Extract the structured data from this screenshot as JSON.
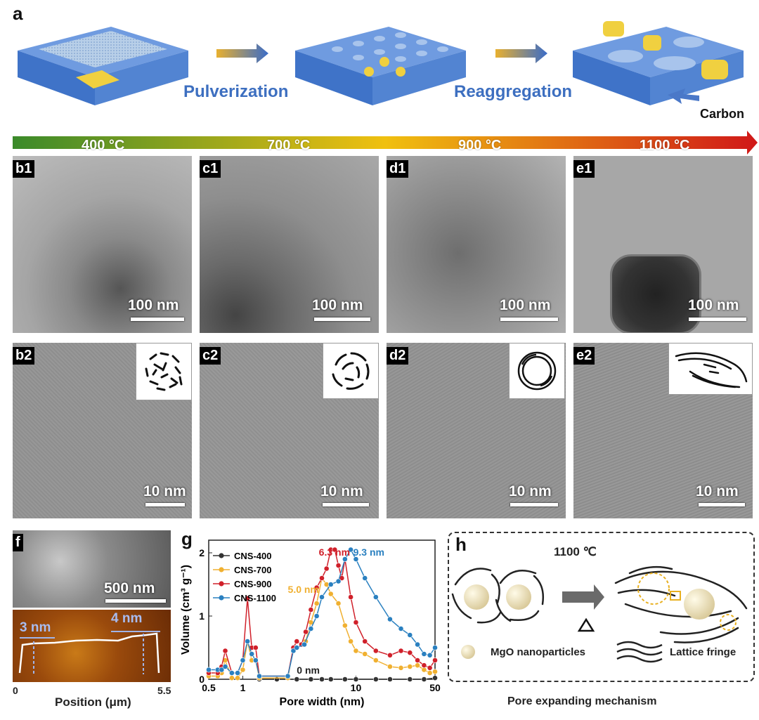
{
  "panels": {
    "a": "a",
    "b1": "b1",
    "c1": "c1",
    "d1": "d1",
    "e1": "e1",
    "b2": "b2",
    "c2": "c2",
    "d2": "d2",
    "e2": "e2",
    "f": "f",
    "g": "g",
    "h": "h"
  },
  "schematic": {
    "step1": "Pulverization",
    "step2": "Reaggregation",
    "carbon_label": "Carbon"
  },
  "temperatures": [
    "400 °C",
    "700 °C",
    "900 °C",
    "1100 °C"
  ],
  "scalebars": {
    "row1": "100 nm",
    "row2": "10 nm",
    "sem": "500 nm"
  },
  "afm": {
    "height1": "3 nm",
    "height2": "4 nm",
    "x_start": "0",
    "x_end": "5.5",
    "xlabel": "Position (μm)"
  },
  "mechanism": {
    "temp": "1100 ℃",
    "legend1": "MgO nanoparticles",
    "legend2": "Lattice fringe",
    "caption": "Pore expanding  mechanism"
  },
  "colors": {
    "cns400": "#333333",
    "cns700": "#f0b030",
    "cns900": "#d0202a",
    "cns1100": "#2a80c0"
  },
  "chart_data": {
    "type": "line",
    "xlabel": "Pore width (nm)",
    "ylabel": "Volume (cm³ g⁻¹)",
    "xscale": "log",
    "xlim": [
      0.5,
      50
    ],
    "ylim": [
      0,
      2.2
    ],
    "xticks": [
      "0.5",
      "1",
      "10",
      "50"
    ],
    "yticks": [
      "0",
      "1",
      "2"
    ],
    "legend_position": "top-left",
    "annotations": [
      "6.3 nm",
      "9.3 nm",
      "5.0 nm",
      "0 nm"
    ],
    "series": [
      {
        "name": "CNS-400",
        "x": [
          1.4,
          2,
          3,
          4,
          5,
          6,
          8,
          10,
          15,
          20,
          30,
          40,
          50
        ],
        "y": [
          0,
          0,
          0,
          0,
          0,
          0,
          0,
          0,
          0,
          0,
          0,
          0,
          0.02
        ]
      },
      {
        "name": "CNS-700",
        "x": [
          0.5,
          0.6,
          0.65,
          0.7,
          0.8,
          0.9,
          1.0,
          1.1,
          1.2,
          1.3,
          1.4,
          2.5,
          2.8,
          3.0,
          3.3,
          3.6,
          4.0,
          4.5,
          5.0,
          5.5,
          6,
          7,
          8,
          9,
          10,
          12,
          15,
          20,
          25,
          30,
          35,
          40,
          45,
          50
        ],
        "y": [
          0.05,
          0.05,
          0.1,
          0.3,
          0.02,
          0.02,
          0.15,
          0.6,
          0.3,
          0.3,
          0.02,
          0.02,
          0.5,
          0.6,
          0.55,
          0.6,
          0.9,
          1.2,
          1.6,
          1.5,
          1.35,
          1.2,
          0.85,
          0.6,
          0.45,
          0.4,
          0.3,
          0.2,
          0.18,
          0.2,
          0.22,
          0.15,
          0.1,
          0.12
        ]
      },
      {
        "name": "CNS-900",
        "x": [
          0.5,
          0.6,
          0.65,
          0.7,
          0.8,
          0.9,
          1.0,
          1.1,
          1.2,
          1.3,
          1.4,
          2.5,
          2.8,
          3.0,
          3.3,
          3.6,
          4.0,
          4.5,
          5.0,
          5.5,
          6.0,
          6.5,
          7.0,
          7.5,
          8,
          9,
          10,
          12,
          15,
          20,
          25,
          30,
          35,
          40,
          45,
          50
        ],
        "y": [
          0.1,
          0.1,
          0.2,
          0.45,
          0.1,
          0.1,
          0.3,
          1.28,
          0.5,
          0.5,
          0.05,
          0.05,
          0.5,
          0.6,
          0.55,
          0.75,
          1.1,
          1.45,
          1.6,
          1.75,
          2.05,
          2.05,
          1.8,
          1.6,
          1.9,
          1.3,
          0.9,
          0.6,
          0.45,
          0.38,
          0.45,
          0.42,
          0.3,
          0.22,
          0.18,
          0.3
        ]
      },
      {
        "name": "CNS-1100",
        "x": [
          0.5,
          0.6,
          0.65,
          0.7,
          0.8,
          0.9,
          1.0,
          1.1,
          1.2,
          1.3,
          1.4,
          2.5,
          2.8,
          3.0,
          3.5,
          4.0,
          4.5,
          5.0,
          6.0,
          7.0,
          8.0,
          9.0,
          10,
          12,
          15,
          20,
          25,
          30,
          35,
          40,
          45,
          50
        ],
        "y": [
          0.15,
          0.15,
          0.15,
          0.2,
          0.1,
          0.1,
          0.3,
          0.6,
          0.4,
          0.3,
          0.05,
          0.05,
          0.45,
          0.5,
          0.55,
          0.8,
          1.0,
          1.3,
          1.5,
          1.55,
          1.9,
          2.05,
          1.9,
          1.6,
          1.3,
          0.95,
          0.8,
          0.7,
          0.55,
          0.4,
          0.38,
          0.5
        ]
      }
    ]
  }
}
